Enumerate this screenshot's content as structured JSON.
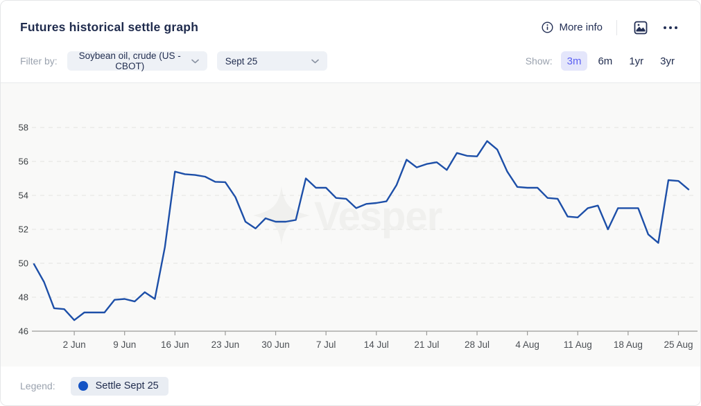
{
  "header": {
    "title": "Futures historical settle graph",
    "more_info_label": "More info"
  },
  "filters": {
    "label": "Filter by:",
    "product_dropdown_value": "Soybean oil, crude (US - CBOT)",
    "contract_dropdown_value": "Sept 25"
  },
  "show": {
    "label": "Show:",
    "options": [
      "3m",
      "6m",
      "1yr",
      "3yr"
    ],
    "selected": "3m"
  },
  "watermark": "Vesper",
  "legend": {
    "label": "Legend:",
    "series_label": "Settle Sept 25",
    "dot_color": "#1453c4"
  },
  "colors": {
    "line": "#1d4fa8",
    "accent_chip_bg": "#e4e6fb",
    "accent_chip_text": "#5c61f2",
    "navy_text": "#1f2b4d",
    "muted_text": "#9aa2ae",
    "chart_bg": "#f9f9f8",
    "gridline": "#e4e4e1",
    "axis": "#9a9a98",
    "tick_label": "#4b4f54",
    "y_label": "#3c4043",
    "watermark_color": "#f0f0ee"
  },
  "chart_data": {
    "type": "line",
    "title": "Futures historical settle graph",
    "xlabel": "",
    "ylabel": "",
    "ylim": [
      46,
      58
    ],
    "y_ticks": [
      46,
      48,
      50,
      52,
      54,
      56,
      58
    ],
    "grid": "dashed-horizontal",
    "legend_position": "bottom",
    "x_tick_labels": [
      "2 Jun",
      "9 Jun",
      "16 Jun",
      "23 Jun",
      "30 Jun",
      "7 Jul",
      "14 Jul",
      "21 Jul",
      "28 Jul",
      "4 Aug",
      "11 Aug",
      "18 Aug",
      "25 Aug"
    ],
    "x_tick_indices": [
      4,
      9,
      14,
      19,
      24,
      29,
      34,
      39,
      44,
      49,
      54,
      59,
      64
    ],
    "series": [
      {
        "name": "Settle Sept 25",
        "color": "#1d4fa8",
        "dates": [
          "27 May",
          "28 May",
          "29 May",
          "30 May",
          "2 Jun",
          "3 Jun",
          "4 Jun",
          "5 Jun",
          "6 Jun",
          "9 Jun",
          "10 Jun",
          "11 Jun",
          "12 Jun",
          "13 Jun",
          "16 Jun",
          "17 Jun",
          "18 Jun",
          "19 Jun",
          "20 Jun",
          "23 Jun",
          "24 Jun",
          "25 Jun",
          "26 Jun",
          "27 Jun",
          "30 Jun",
          "1 Jul",
          "2 Jul",
          "3 Jul",
          "4 Jul",
          "7 Jul",
          "8 Jul",
          "9 Jul",
          "10 Jul",
          "11 Jul",
          "14 Jul",
          "15 Jul",
          "16 Jul",
          "17 Jul",
          "18 Jul",
          "21 Jul",
          "22 Jul",
          "23 Jul",
          "24 Jul",
          "25 Jul",
          "28 Jul",
          "29 Jul",
          "30 Jul",
          "31 Jul",
          "1 Aug",
          "4 Aug",
          "5 Aug",
          "6 Aug",
          "7 Aug",
          "8 Aug",
          "11 Aug",
          "12 Aug",
          "13 Aug",
          "14 Aug",
          "15 Aug",
          "18 Aug",
          "19 Aug",
          "20 Aug",
          "21 Aug",
          "22 Aug",
          "25 Aug",
          "26 Aug"
        ],
        "values": [
          49.95,
          48.9,
          47.35,
          47.3,
          46.65,
          47.1,
          47.1,
          47.1,
          47.85,
          47.9,
          47.75,
          48.3,
          47.9,
          50.95,
          55.4,
          55.25,
          55.2,
          55.1,
          54.8,
          54.78,
          53.9,
          52.45,
          52.05,
          52.65,
          52.45,
          52.45,
          52.55,
          55.0,
          54.45,
          54.45,
          53.85,
          53.8,
          53.25,
          53.5,
          53.55,
          53.65,
          54.6,
          56.1,
          55.65,
          55.85,
          55.95,
          55.5,
          56.5,
          56.33,
          56.3,
          57.2,
          56.7,
          55.4,
          54.5,
          54.45,
          54.45,
          53.85,
          53.8,
          52.75,
          52.7,
          53.25,
          53.4,
          52.0,
          53.25,
          53.25,
          53.25,
          51.7,
          51.2,
          54.9,
          54.85,
          54.35
        ]
      }
    ]
  }
}
